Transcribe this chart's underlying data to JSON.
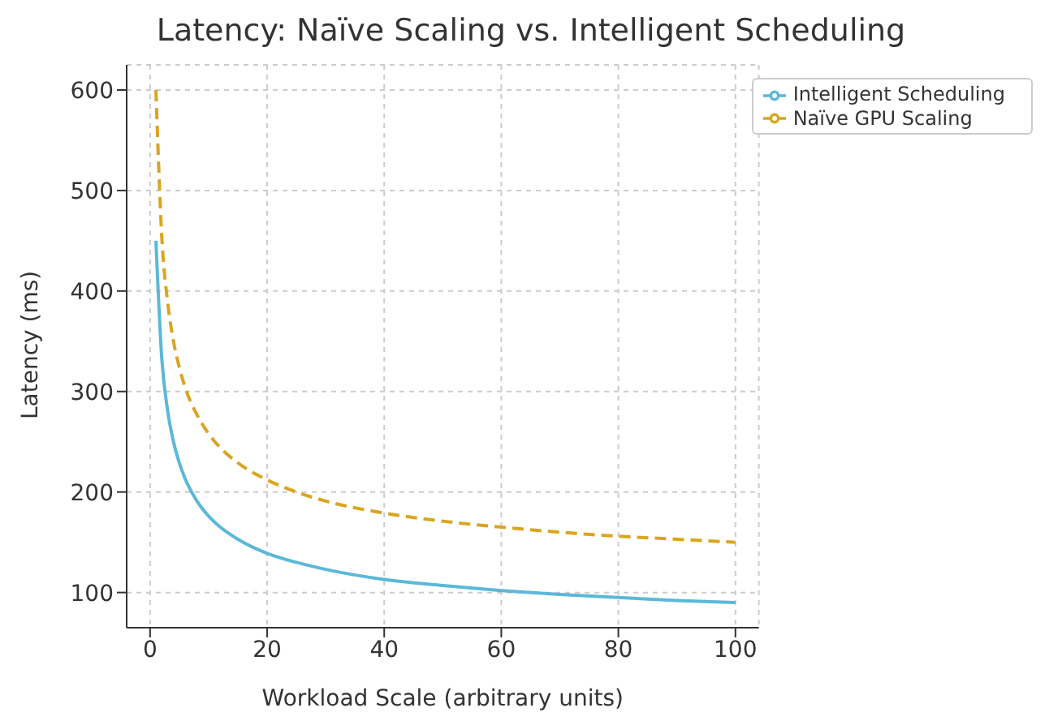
{
  "chart_data": {
    "type": "line",
    "title": "Latency: Naïve Scaling vs. Intelligent Scheduling",
    "xlabel": "Workload Scale (arbitrary units)",
    "ylabel": "Latency (ms)",
    "x": [
      1,
      2,
      3,
      4,
      5,
      6,
      8,
      10,
      12,
      15,
      20,
      25,
      30,
      40,
      50,
      60,
      70,
      80,
      90,
      100
    ],
    "series": [
      {
        "name": "Naïve GPU Scaling",
        "color": "#daa520",
        "line_style": "dashed",
        "values": [
          600,
          454,
          389,
          350,
          324,
          304,
          277,
          258,
          244,
          229,
          212,
          200,
          191,
          179,
          171,
          165,
          160,
          156,
          153,
          150
        ]
      },
      {
        "name": "Intelligent Scheduling",
        "color": "#5bb8d8",
        "line_style": "solid",
        "values": [
          450,
          333,
          281,
          250,
          229,
          213,
          191,
          176,
          165,
          153,
          139,
          130,
          123,
          113,
          107,
          102,
          98,
          95,
          92,
          90
        ]
      }
    ],
    "xlim": [
      -4,
      104
    ],
    "ylim": [
      65,
      625
    ],
    "xticks": [
      0,
      20,
      40,
      60,
      80,
      100
    ],
    "yticks": [
      100,
      200,
      300,
      400,
      500,
      600
    ],
    "grid": true,
    "legend": "top right",
    "marker": "none"
  }
}
